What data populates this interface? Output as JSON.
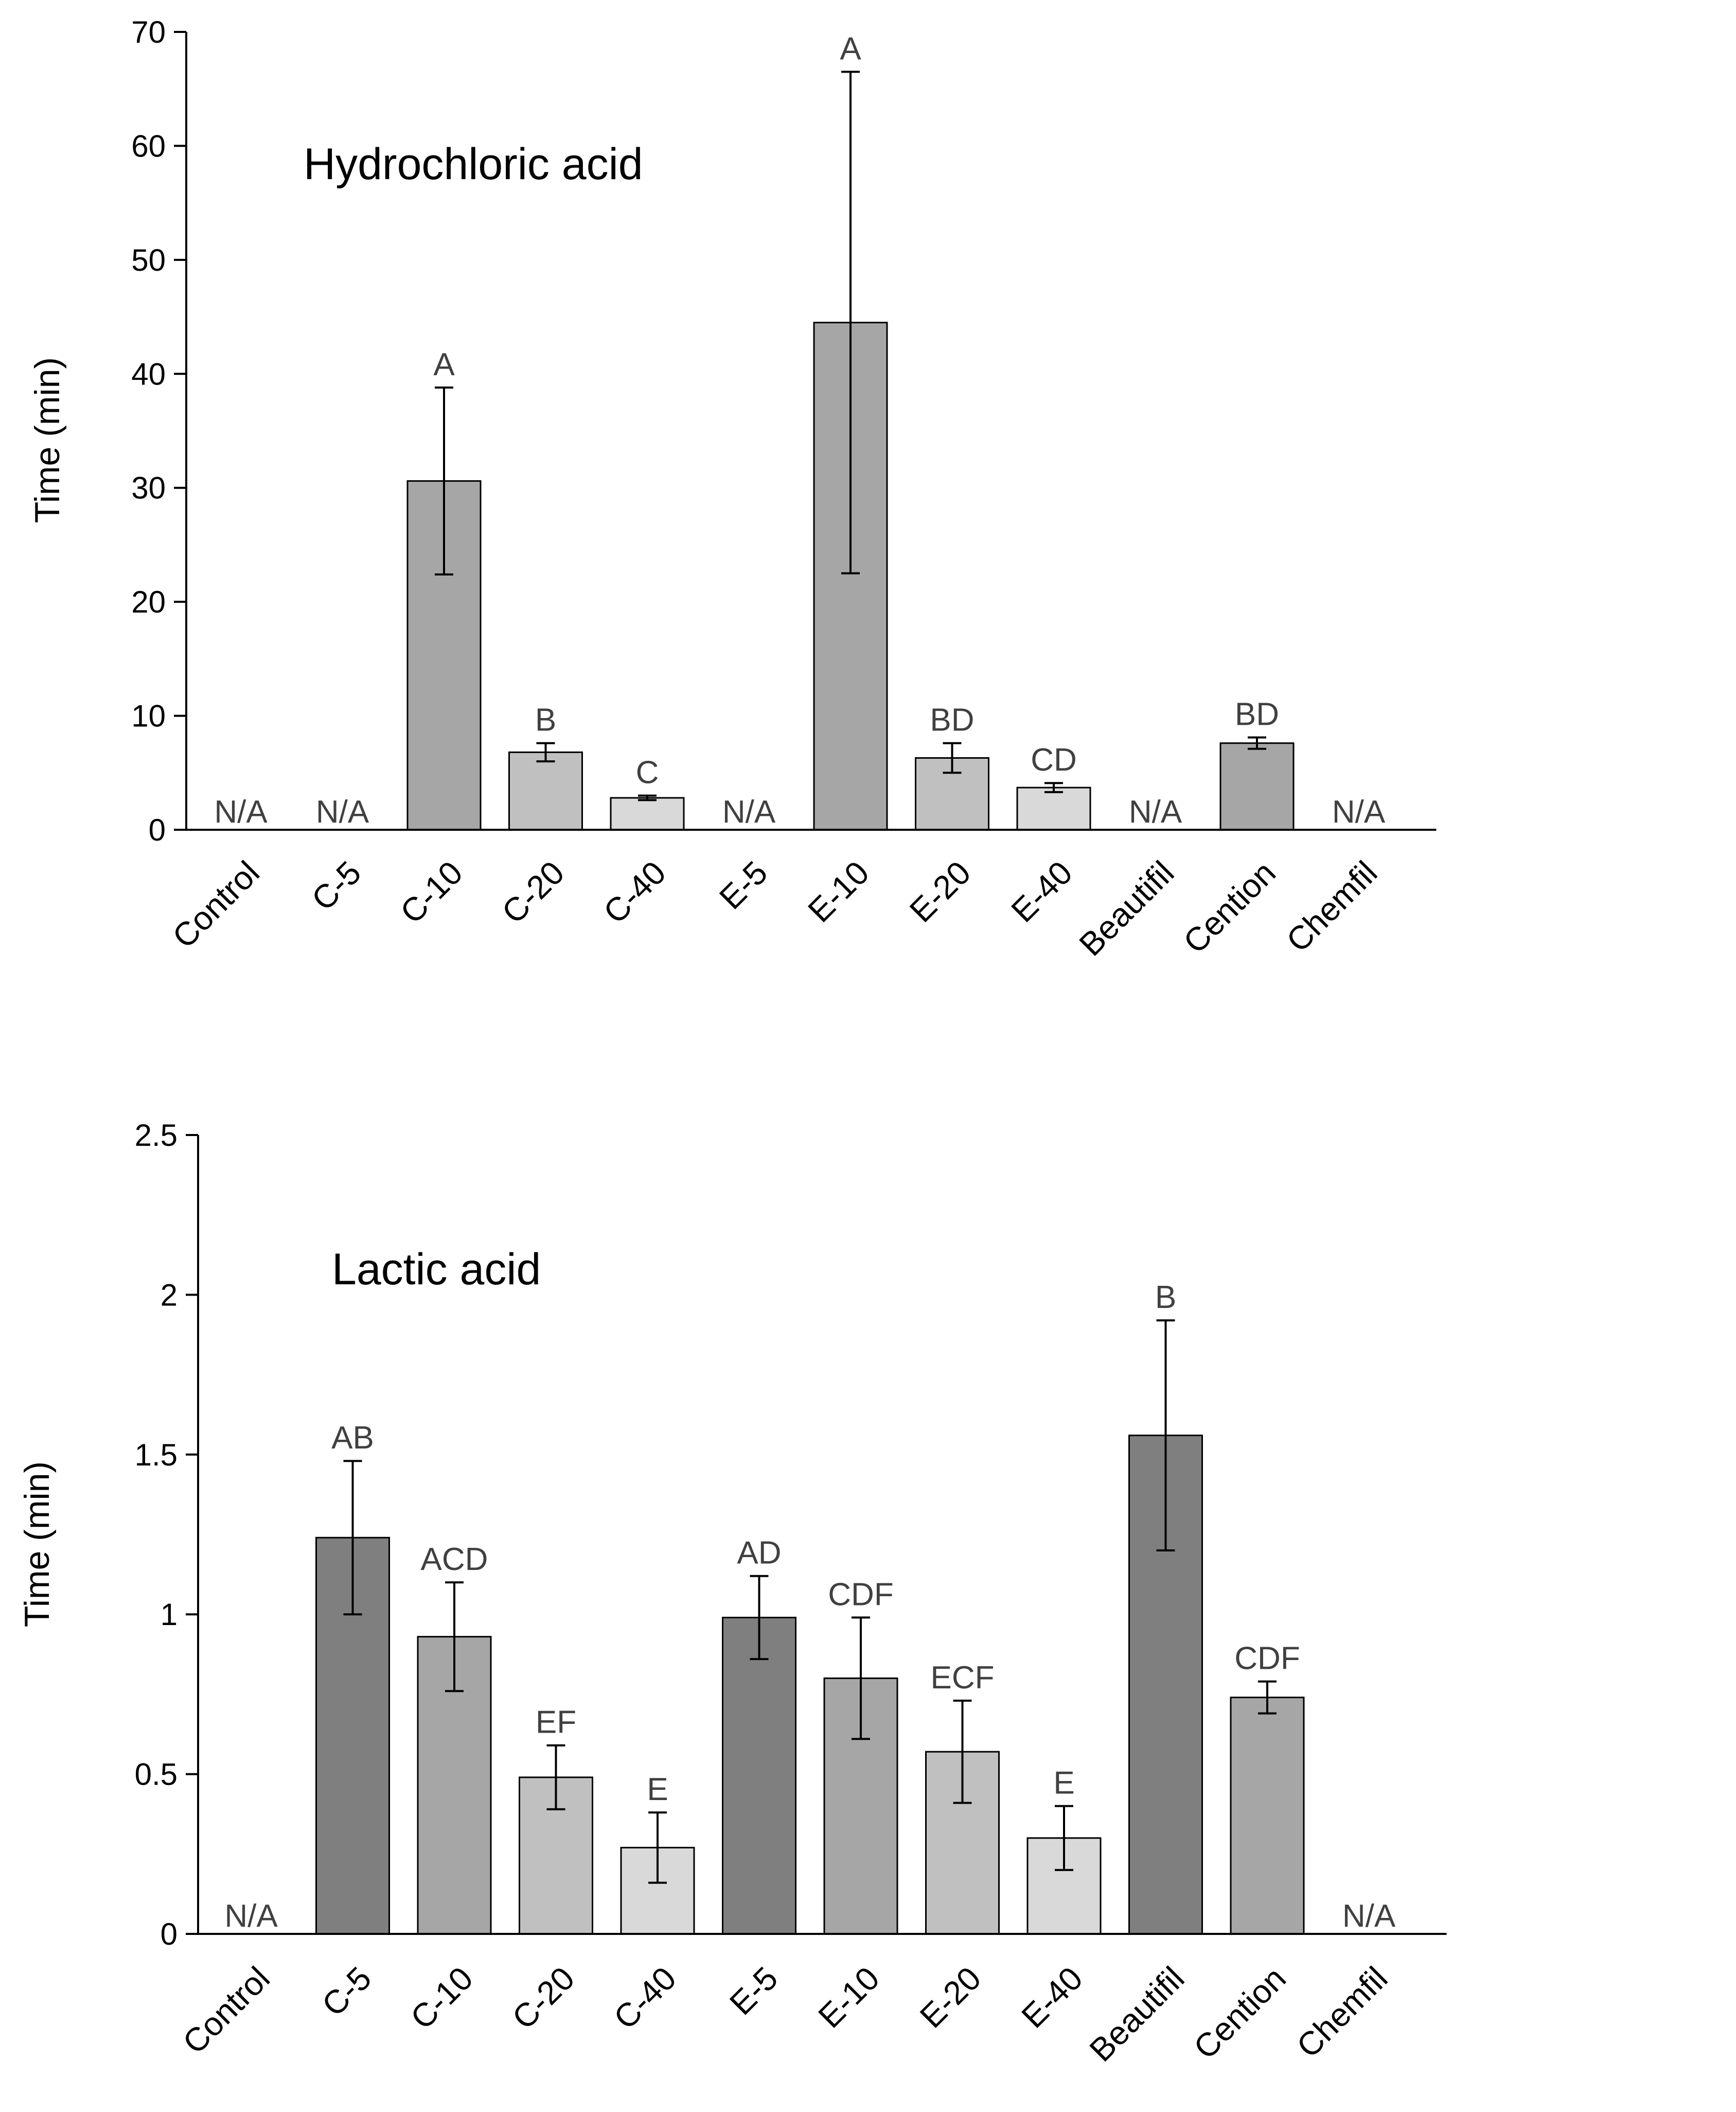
{
  "chart_data": [
    {
      "type": "bar",
      "title": "Hydrochloric acid",
      "xlabel": "",
      "ylabel": "Time (min)",
      "ylim": [
        0,
        70
      ],
      "yticks": [
        0,
        10,
        20,
        30,
        40,
        50,
        60,
        70
      ],
      "categories": [
        "Control",
        "C-5",
        "C-10",
        "C-20",
        "C-40",
        "E-5",
        "E-10",
        "E-20",
        "E-40",
        "Beautifil",
        "Cention",
        "Chemfil"
      ],
      "values": [
        null,
        null,
        30.6,
        6.8,
        2.8,
        null,
        44.5,
        6.3,
        3.7,
        null,
        7.6,
        null
      ],
      "errors": [
        null,
        null,
        8.2,
        0.8,
        0.2,
        null,
        22.0,
        1.3,
        0.4,
        null,
        0.5,
        null
      ],
      "letters": [
        "",
        "",
        "A",
        "B",
        "C",
        "",
        "A",
        "BD",
        "CD",
        "",
        "BD",
        ""
      ],
      "na_label": "N/A",
      "colors": [
        "#7f7f7f",
        "#7f7f7f",
        "#a6a6a6",
        "#c0c0c0",
        "#d9d9d9",
        "#7f7f7f",
        "#a6a6a6",
        "#c0c0c0",
        "#d9d9d9",
        "#7f7f7f",
        "#a6a6a6",
        "#a6a6a6"
      ]
    },
    {
      "type": "bar",
      "title": "Lactic acid",
      "xlabel": "",
      "ylabel": "Time (min)",
      "ylim": [
        0,
        2.5
      ],
      "yticks": [
        "0",
        "0.5",
        "1",
        "1.5",
        "2",
        "2.5"
      ],
      "categories": [
        "Control",
        "C-5",
        "C-10",
        "C-20",
        "C-40",
        "E-5",
        "E-10",
        "E-20",
        "E-40",
        "Beautifil",
        "Cention",
        "Chemfil"
      ],
      "values": [
        null,
        1.24,
        0.93,
        0.49,
        0.27,
        0.99,
        0.8,
        0.57,
        0.3,
        1.56,
        0.74,
        null
      ],
      "errors": [
        null,
        0.24,
        0.17,
        0.1,
        0.11,
        0.13,
        0.19,
        0.16,
        0.1,
        0.36,
        0.05,
        null
      ],
      "letters": [
        "",
        "AB",
        "ACD",
        "EF",
        "E",
        "AD",
        "CDF",
        "ECF",
        "E",
        "B",
        "CDF",
        ""
      ],
      "na_label": "N/A",
      "colors": [
        "#7f7f7f",
        "#7f7f7f",
        "#a6a6a6",
        "#c0c0c0",
        "#d9d9d9",
        "#7f7f7f",
        "#a6a6a6",
        "#c0c0c0",
        "#d9d9d9",
        "#7f7f7f",
        "#a6a6a6",
        "#a6a6a6"
      ]
    }
  ]
}
